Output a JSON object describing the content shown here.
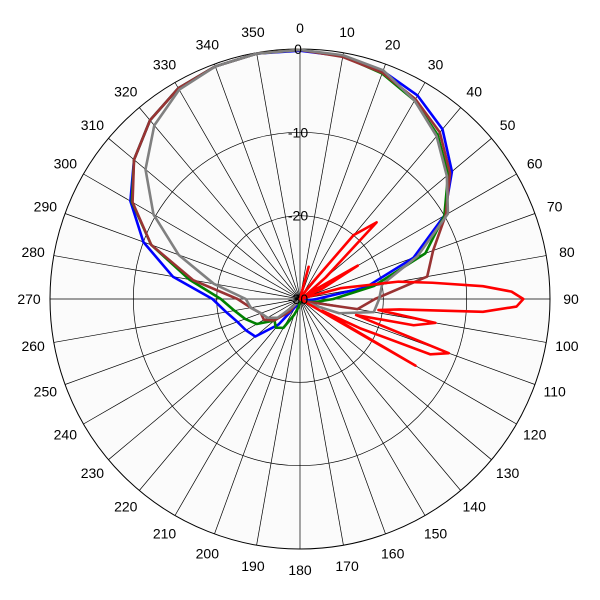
{
  "chart_data": {
    "type": "polar-line",
    "title": "",
    "angle_unit": "degrees",
    "angle_zero": "top",
    "angle_direction": "clockwise",
    "angle_tick_step": 10,
    "angle_tick_labels": [
      "0",
      "10",
      "20",
      "30",
      "40",
      "50",
      "60",
      "70",
      "80",
      "90",
      "100",
      "110",
      "120",
      "130",
      "140",
      "150",
      "160",
      "170",
      "180",
      "190",
      "200",
      "210",
      "220",
      "230",
      "240",
      "250",
      "260",
      "270",
      "280",
      "290",
      "300",
      "310",
      "320",
      "330",
      "340",
      "350"
    ],
    "radial_range": [
      -30,
      0
    ],
    "radial_tick_labels": [
      "0",
      "-10",
      "-20",
      "-30"
    ],
    "radial_tick_values": [
      0,
      -10,
      -20,
      -30
    ],
    "grid": true,
    "legend": "none",
    "series": [
      {
        "color": "#0000ff",
        "angles": [
          0,
          10,
          20,
          30,
          40,
          50,
          60,
          70,
          80,
          90,
          100,
          110,
          120,
          130,
          140,
          150,
          160,
          170,
          180,
          190,
          200,
          210,
          220,
          230,
          240,
          250,
          260,
          270,
          280,
          290,
          300,
          310,
          320,
          330,
          340,
          350
        ],
        "values": [
          -0.2,
          -0.4,
          -0.9,
          -1.8,
          -3.4,
          -6.2,
          -10,
          -15.5,
          -22,
          -28,
          -29,
          -30,
          -30,
          -30,
          -30,
          -30,
          -30,
          -30,
          -30,
          -30,
          -30,
          -29,
          -26,
          -23,
          -22.5,
          -22,
          -21,
          -19.5,
          -14.5,
          -10,
          -6.5,
          -4,
          -2,
          -0.8,
          -0.3,
          -0.1
        ]
      },
      {
        "color": "#008000",
        "angles": [
          0,
          10,
          20,
          30,
          40,
          50,
          60,
          70,
          80,
          90,
          100,
          110,
          120,
          130,
          140,
          150,
          160,
          170,
          180,
          190,
          200,
          210,
          220,
          230,
          240,
          250,
          260,
          270,
          280,
          290,
          300,
          310,
          320,
          330,
          340,
          350
        ],
        "values": [
          -0.1,
          -0.4,
          -1.2,
          -2.5,
          -4.3,
          -6.8,
          -10,
          -14,
          -21,
          -26,
          -28,
          -29,
          -30,
          -30,
          -30,
          -30,
          -30,
          -30,
          -30,
          -29,
          -28,
          -26,
          -25.5,
          -26,
          -24,
          -23,
          -22,
          -20.5,
          -16.5,
          -11,
          -6.7,
          -4,
          -2,
          -0.8,
          -0.3,
          -0.1
        ]
      },
      {
        "color": "#993333",
        "angles": [
          0,
          10,
          20,
          30,
          40,
          50,
          60,
          70,
          80,
          90,
          100,
          110,
          120,
          130,
          140,
          150,
          160,
          170,
          180,
          190,
          200,
          210,
          220,
          230,
          240,
          250,
          260,
          270,
          280,
          290,
          300,
          310,
          320,
          330,
          340,
          350
        ],
        "values": [
          -0.1,
          -0.5,
          -1.1,
          -2.3,
          -3.9,
          -6.5,
          -9.8,
          -13,
          -14.5,
          -21,
          -23,
          -29,
          -30,
          -30,
          -30,
          -30,
          -30,
          -30,
          -30,
          -30,
          -30,
          -30,
          -28,
          -26,
          -25,
          -25,
          -24,
          -22.5,
          -17,
          -11,
          -6.8,
          -4,
          -2,
          -0.8,
          -0.3,
          -0.1
        ]
      },
      {
        "color": "#808080",
        "angles": [
          0,
          10,
          20,
          30,
          40,
          50,
          60,
          70,
          80,
          90,
          100,
          110,
          120,
          130,
          140,
          150,
          160,
          170,
          180,
          190,
          200,
          210,
          220,
          230,
          240,
          250,
          260,
          270,
          280,
          290,
          300,
          310,
          320,
          330,
          340,
          350
        ],
        "values": [
          -0.1,
          -0.3,
          -0.8,
          -2.5,
          -4.5,
          -7,
          -9.5,
          -15,
          -20,
          -20.5,
          -21,
          -25,
          -29,
          -30,
          -30,
          -30,
          -30,
          -30,
          -30,
          -30,
          -30,
          -30,
          -29,
          -26.5,
          -25.5,
          -25,
          -24,
          -23.5,
          -19.5,
          -14.5,
          -9.7,
          -5.8,
          -2.8,
          -1,
          -0.3,
          -0.1
        ]
      },
      {
        "color": "#ff0000",
        "angles": [
          0,
          5,
          10,
          15,
          20,
          25,
          30,
          35,
          40,
          45,
          50,
          55,
          60,
          65,
          70,
          75,
          80,
          83,
          86,
          88,
          90,
          92,
          94,
          96,
          98,
          100,
          103,
          106,
          110,
          113,
          116,
          118,
          120,
          125,
          130,
          135,
          140,
          145,
          150,
          155,
          160,
          170,
          180,
          190,
          200,
          210,
          220,
          230,
          240,
          250,
          260,
          270,
          280,
          290,
          300,
          310,
          320,
          330,
          340,
          350
        ],
        "values": [
          -30,
          -30,
          -30,
          -26,
          -30,
          -30,
          -30,
          -28.5,
          -20,
          -17,
          -26,
          -29,
          -22,
          -27,
          -30,
          -25,
          -18,
          -14,
          -8,
          -4.6,
          -3.2,
          -4,
          -8,
          -18,
          -20.5,
          -13.5,
          -16,
          -23,
          -11,
          -13,
          -22,
          -27,
          -14,
          -30,
          -30,
          -30,
          -30,
          -30,
          -30,
          -30,
          -30,
          -30,
          -30,
          -30,
          -30,
          -30,
          -30,
          -30,
          -30,
          -30,
          -30,
          -30,
          -30,
          -30,
          -30,
          -30,
          -30,
          -30,
          -30,
          -30
        ]
      }
    ]
  }
}
